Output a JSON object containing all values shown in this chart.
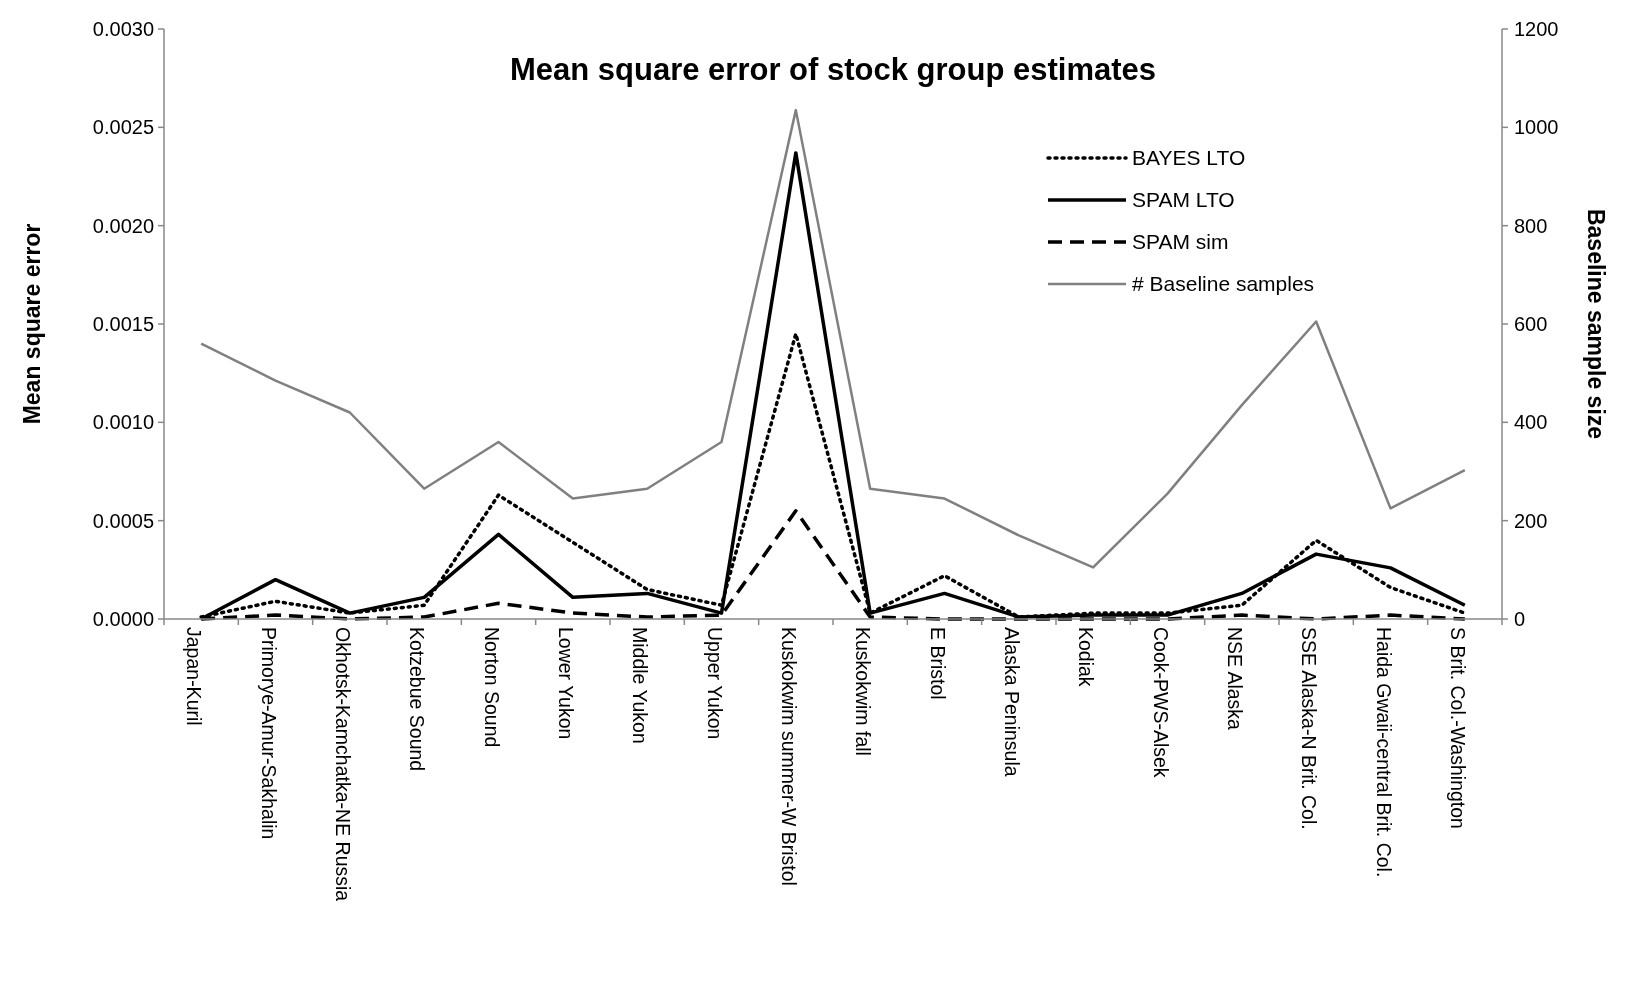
{
  "chart_data": {
    "type": "line",
    "title": "Mean square error of stock group estimates",
    "ylabel": "Mean square error",
    "y2label": "Baseline sample size",
    "categories": [
      "Japan-Kuril",
      "Primorye-Amur-Sakhalin",
      "Okhotsk-Kamchatka-NE Russia",
      "Kotzebue Sound",
      "Norton Sound",
      "Lower Yukon",
      "Middle Yukon",
      "Upper Yukon",
      "Kuskokwim summer-W Bristol",
      "Kuskokwim fall",
      "E Bristol",
      "Alaska Peninsula",
      "Kodiak",
      "Cook-PWS-Alsek",
      "NSE Alaska",
      "SSE Alaska-N Brit. Col.",
      "Haida Gwaii-central Brit. Col.",
      "S Brit. Col.-Washington"
    ],
    "series": [
      {
        "name": "BAYES LTO",
        "color": "#000000",
        "line_style": "dotted",
        "values": [
          1e-05,
          9e-05,
          3e-05,
          7e-05,
          0.00063,
          0.00039,
          0.00015,
          7e-05,
          0.00145,
          3e-05,
          0.00022,
          1e-05,
          3e-05,
          3e-05,
          7e-05,
          0.0004,
          0.00016,
          3e-05
        ]
      },
      {
        "name": "SPAM LTO",
        "color": "#000000",
        "line_style": "solid",
        "values": [
          0,
          0.0002,
          3e-05,
          0.00011,
          0.00043,
          0.00011,
          0.00013,
          3e-05,
          0.00237,
          3e-05,
          0.00013,
          1e-05,
          2e-05,
          2e-05,
          0.00013,
          0.00033,
          0.00026,
          7e-05
        ]
      },
      {
        "name": "SPAM sim",
        "color": "#000000",
        "line_style": "dashed",
        "values": [
          0,
          2e-05,
          0,
          1e-05,
          8e-05,
          3e-05,
          1e-05,
          2e-05,
          0.00055,
          1e-05,
          0,
          0,
          0,
          0,
          2e-05,
          0,
          2e-05,
          0
        ]
      },
      {
        "name": "# Baseline samples",
        "color": "#808080",
        "line_style": "solid",
        "axis": "y2",
        "values": [
          560,
          485,
          420,
          265,
          360,
          245,
          265,
          360,
          1035,
          265,
          245,
          170,
          105,
          255,
          435,
          605,
          225,
          303
        ]
      }
    ],
    "ylim": [
      0,
      0.003
    ],
    "yticks": [
      {
        "value": 0,
        "label": "0.0000"
      },
      {
        "value": 0.0005,
        "label": "0.0005"
      },
      {
        "value": 0.001,
        "label": "0.0010"
      },
      {
        "value": 0.0015,
        "label": "0.0015"
      },
      {
        "value": 0.002,
        "label": "0.0020"
      },
      {
        "value": 0.0025,
        "label": "0.0025"
      },
      {
        "value": 0.003,
        "label": "0.0030"
      }
    ],
    "y2lim": [
      0,
      1200
    ],
    "y2ticks": [
      0,
      200,
      400,
      600,
      800,
      1000,
      1200
    ],
    "grid": false,
    "legend": "top right",
    "marker": "none"
  }
}
